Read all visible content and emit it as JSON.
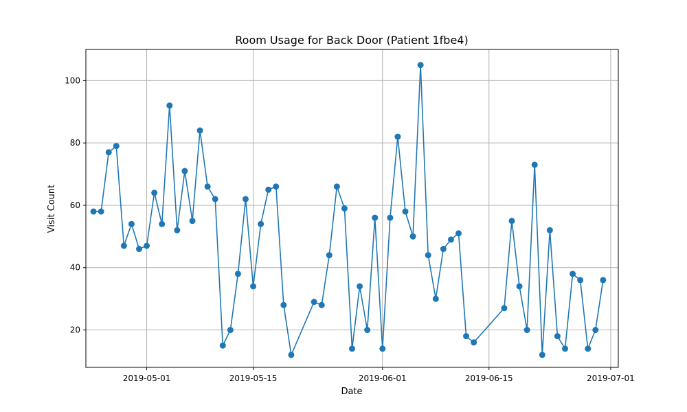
{
  "chart_data": {
    "type": "line",
    "title": "Room Usage for Back Door (Patient 1fbe4)",
    "xlabel": "Date",
    "ylabel": "Visit Count",
    "xlim": [
      "2019-04-23",
      "2019-07-02"
    ],
    "ylim": [
      8,
      110
    ],
    "x_ticks": [
      "2019-05-01",
      "2019-05-15",
      "2019-06-01",
      "2019-06-15",
      "2019-07-01"
    ],
    "y_ticks": [
      20,
      40,
      60,
      80,
      100
    ],
    "grid": true,
    "marker": "circle",
    "color": "#1f77b4",
    "series": [
      {
        "x": [
          "2019-04-24",
          "2019-04-25",
          "2019-04-26",
          "2019-04-27",
          "2019-04-28",
          "2019-04-29",
          "2019-04-30",
          "2019-05-01",
          "2019-05-02",
          "2019-05-03",
          "2019-05-04",
          "2019-05-05",
          "2019-05-06",
          "2019-05-07",
          "2019-05-08",
          "2019-05-09",
          "2019-05-10",
          "2019-05-11",
          "2019-05-12",
          "2019-05-13",
          "2019-05-14",
          "2019-05-15",
          "2019-05-16",
          "2019-05-17",
          "2019-05-18",
          "2019-05-19",
          "2019-05-20",
          "2019-05-23",
          "2019-05-24",
          "2019-05-25",
          "2019-05-26",
          "2019-05-27",
          "2019-05-28",
          "2019-05-29",
          "2019-05-30",
          "2019-05-31",
          "2019-06-01",
          "2019-06-02",
          "2019-06-03",
          "2019-06-04",
          "2019-06-05",
          "2019-06-06",
          "2019-06-07",
          "2019-06-08",
          "2019-06-09",
          "2019-06-10",
          "2019-06-11",
          "2019-06-12",
          "2019-06-13",
          "2019-06-17",
          "2019-06-18",
          "2019-06-19",
          "2019-06-20",
          "2019-06-21",
          "2019-06-22",
          "2019-06-23",
          "2019-06-24",
          "2019-06-25",
          "2019-06-26",
          "2019-06-27",
          "2019-06-28",
          "2019-06-29",
          "2019-06-30"
        ],
        "values": [
          58,
          58,
          77,
          79,
          47,
          54,
          46,
          47,
          64,
          54,
          92,
          52,
          71,
          55,
          84,
          66,
          62,
          15,
          20,
          38,
          62,
          34,
          54,
          65,
          66,
          28,
          12,
          29,
          28,
          44,
          66,
          59,
          14,
          34,
          20,
          56,
          14,
          56,
          82,
          58,
          50,
          105,
          44,
          30,
          46,
          49,
          51,
          18,
          16,
          27,
          55,
          34,
          20,
          73,
          12,
          52,
          18,
          14,
          38,
          36,
          14,
          20,
          36
        ]
      }
    ]
  }
}
